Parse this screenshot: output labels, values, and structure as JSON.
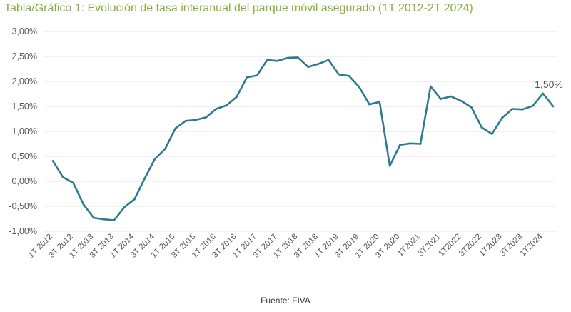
{
  "chart_data": {
    "type": "line",
    "title": "Tabla/Gráfico 1: Evolución de tasa interanual del parque móvil asegurado (1T 2012-2T 2024)",
    "source": "Fuente: FIVA",
    "ylim": [
      -1.0,
      3.0
    ],
    "y_ticks": [
      "3,00%",
      "2,50%",
      "2,00%",
      "1,50%",
      "1,00%",
      "0,50%",
      "0,00%",
      "-0,50%",
      "-1,00%"
    ],
    "y_tick_values": [
      3.0,
      2.5,
      2.0,
      1.5,
      1.0,
      0.5,
      0.0,
      -0.5,
      -1.0
    ],
    "x_tick_labels": [
      "1T 2012",
      "3T 2012",
      "1T 2013",
      "3T 2013",
      "1T 2014",
      "3T 2014",
      "1T 2015",
      "3T 2015",
      "1T 2016",
      "3T 2016",
      "1T 2017",
      "3T 2017",
      "1T 2018",
      "3T 2018",
      "1T 2019",
      "3T 2019",
      "1T 2020",
      "3T 2020",
      "1T2021",
      "3T2021",
      "1T2022",
      "3T2022",
      "1T2023",
      "3T2023",
      "1T2024"
    ],
    "categories": [
      "1T 2012",
      "2T 2012",
      "3T 2012",
      "4T 2012",
      "1T 2013",
      "2T 2013",
      "3T 2013",
      "4T 2013",
      "1T 2014",
      "2T 2014",
      "3T 2014",
      "4T 2014",
      "1T 2015",
      "2T 2015",
      "3T 2015",
      "4T 2015",
      "1T 2016",
      "2T 2016",
      "3T 2016",
      "4T 2016",
      "1T 2017",
      "2T 2017",
      "3T 2017",
      "4T 2017",
      "1T 2018",
      "2T 2018",
      "3T 2018",
      "4T 2018",
      "1T 2019",
      "2T 2019",
      "3T 2019",
      "4T 2019",
      "1T 2020",
      "2T 2020",
      "3T 2020",
      "4T 2020",
      "1T 2021",
      "2T 2021",
      "3T 2021",
      "4T 2021",
      "1T 2022",
      "2T 2022",
      "3T 2022",
      "4T 2022",
      "1T 2023",
      "2T 2023",
      "3T 2023",
      "4T 2023",
      "1T 2024",
      "2T 2024"
    ],
    "values": [
      0.41,
      0.08,
      -0.03,
      -0.46,
      -0.73,
      -0.76,
      -0.78,
      -0.52,
      -0.36,
      0.06,
      0.45,
      0.65,
      1.06,
      1.21,
      1.23,
      1.28,
      1.45,
      1.52,
      1.69,
      2.08,
      2.12,
      2.43,
      2.41,
      2.47,
      2.48,
      2.29,
      2.35,
      2.43,
      2.14,
      2.11,
      1.89,
      1.54,
      1.59,
      0.31,
      0.73,
      0.76,
      0.75,
      1.9,
      1.65,
      1.7,
      1.61,
      1.48,
      1.08,
      0.95,
      1.27,
      1.45,
      1.44,
      1.51,
      1.76,
      1.5
    ],
    "annotation": "1,50%",
    "line_color": "#2e7a93",
    "title_color": "#8bae3e",
    "grid": true,
    "legend": "none"
  }
}
